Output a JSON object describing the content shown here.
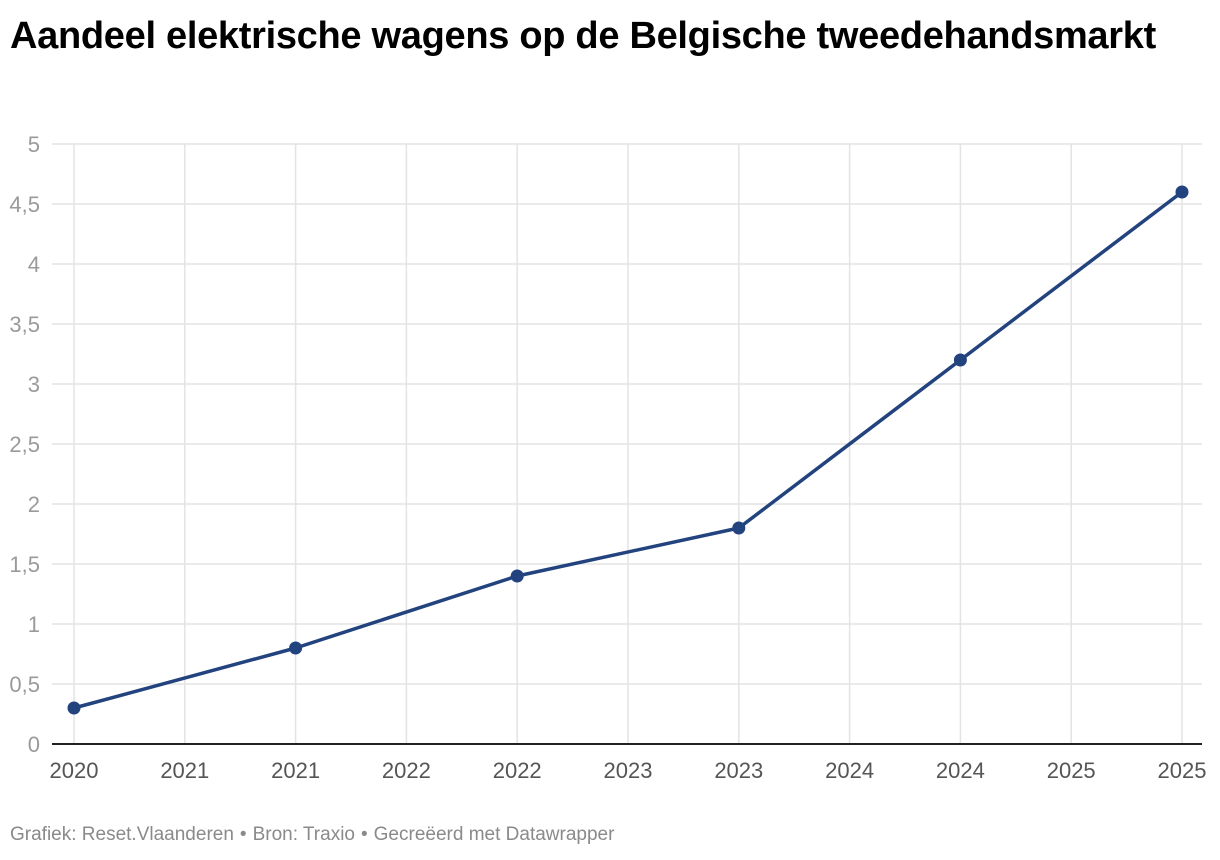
{
  "chart_data": {
    "type": "line",
    "title": "Aandeel elektrische wagens op de Belgische tweedehandsmarkt",
    "xlabel": "",
    "ylabel": "",
    "x_tick_labels": [
      "2020",
      "2021",
      "2021",
      "2022",
      "2022",
      "2023",
      "2023",
      "2024",
      "2024",
      "2025",
      "2025"
    ],
    "y_tick_labels": [
      "0",
      "0,5",
      "1",
      "1,5",
      "2",
      "2,5",
      "3",
      "3,5",
      "4",
      "4,5",
      "5"
    ],
    "ylim": [
      0,
      5
    ],
    "grid": true,
    "legend": "none",
    "series": [
      {
        "color": "#23437f",
        "points": [
          {
            "tick": 0,
            "value": 0.3
          },
          {
            "tick": 2,
            "value": 0.8
          },
          {
            "tick": 4,
            "value": 1.4
          },
          {
            "tick": 6,
            "value": 1.8
          },
          {
            "tick": 8,
            "value": 3.2
          },
          {
            "tick": 10,
            "value": 4.6
          }
        ]
      }
    ]
  },
  "footer": {
    "chart_by": "Grafiek: Reset.Vlaanderen",
    "source": "Bron: Traxio",
    "made_with": "Gecreëerd met Datawrapper",
    "separator": "•"
  }
}
